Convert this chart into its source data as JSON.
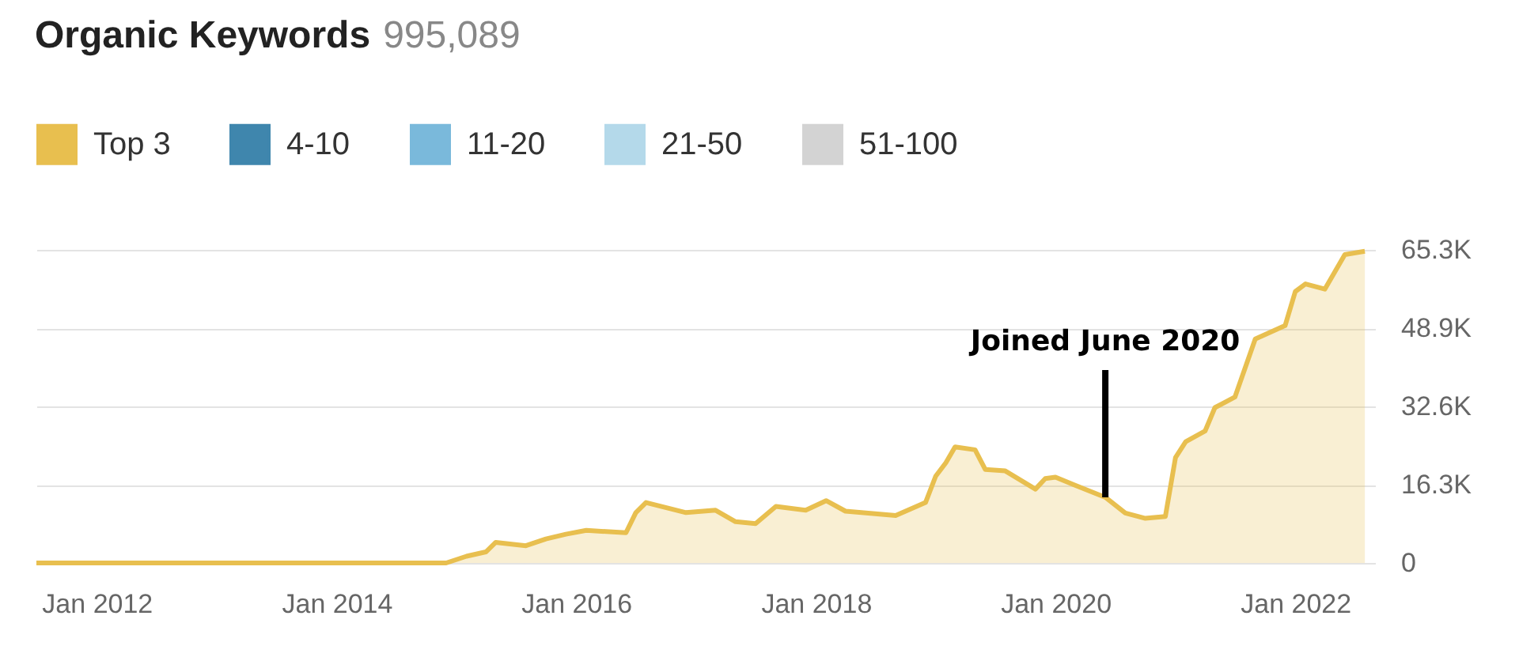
{
  "chart_data": {
    "type": "area",
    "title": "Organic Keywords",
    "subtitle": "995,089",
    "x": [
      "2011-07",
      "2014-12",
      "2015-02",
      "2015-04",
      "2015-05",
      "2015-08",
      "2015-10",
      "2015-12",
      "2016-02",
      "2016-06",
      "2016-07",
      "2016-08",
      "2016-12",
      "2017-03",
      "2017-05",
      "2017-07",
      "2017-09",
      "2017-12",
      "2018-02",
      "2018-04",
      "2018-09",
      "2018-12",
      "2019-01",
      "2019-02",
      "2019-03",
      "2019-05",
      "2019-06",
      "2019-08",
      "2019-11",
      "2019-12",
      "2020-01",
      "2020-03",
      "2020-06",
      "2020-08",
      "2020-10",
      "2020-12",
      "2021-01",
      "2021-02",
      "2021-04",
      "2021-05",
      "2021-07",
      "2021-09",
      "2021-12",
      "2022-01",
      "2022-02",
      "2022-04",
      "2022-06",
      "2022-08"
    ],
    "series": [
      {
        "name": "Top 3",
        "color": "#e8bf4f",
        "values": [
          0,
          0,
          1400,
          2300,
          4300,
          3600,
          5000,
          6000,
          6800,
          6300,
          10500,
          12600,
          10500,
          11000,
          8600,
          8200,
          11800,
          11000,
          13000,
          10800,
          9900,
          12600,
          18100,
          20900,
          24200,
          23600,
          19500,
          19200,
          15400,
          17600,
          17900,
          16200,
          13700,
          10400,
          9300,
          9700,
          22000,
          25300,
          27500,
          32400,
          34600,
          46700,
          49500,
          56600,
          58200,
          57100,
          64300,
          65000
        ]
      },
      {
        "name": "4-10",
        "color": "#3f86ad",
        "values": [
          null,
          null,
          null,
          null,
          null,
          null,
          null,
          null,
          null,
          null,
          null,
          null,
          null,
          null,
          null,
          null,
          null,
          null,
          null,
          null,
          null,
          null,
          null,
          null,
          null,
          null,
          null,
          null,
          null,
          null,
          null,
          null,
          null,
          null,
          null,
          null,
          null,
          null,
          null,
          null,
          null,
          null,
          null,
          null,
          null,
          null,
          null,
          null
        ]
      },
      {
        "name": "11-20",
        "color": "#7ab9db",
        "values": [
          null,
          null,
          null,
          null,
          null,
          null,
          null,
          null,
          null,
          null,
          null,
          null,
          null,
          null,
          null,
          null,
          null,
          null,
          null,
          null,
          null,
          null,
          null,
          null,
          null,
          null,
          null,
          null,
          null,
          null,
          null,
          null,
          null,
          null,
          null,
          null,
          null,
          null,
          null,
          null,
          null,
          null,
          null,
          null,
          null,
          null,
          null,
          null
        ]
      },
      {
        "name": "21-50",
        "color": "#b4d9ea",
        "values": [
          null,
          null,
          null,
          null,
          null,
          null,
          null,
          null,
          null,
          null,
          null,
          null,
          null,
          null,
          null,
          null,
          null,
          null,
          null,
          null,
          null,
          null,
          null,
          null,
          null,
          null,
          null,
          null,
          null,
          null,
          null,
          null,
          null,
          null,
          null,
          null,
          null,
          null,
          null,
          null,
          null,
          null,
          null,
          null,
          null,
          null,
          null,
          null
        ]
      },
      {
        "name": "51-100",
        "color": "#d3d3d3",
        "values": [
          null,
          null,
          null,
          null,
          null,
          null,
          null,
          null,
          null,
          null,
          null,
          null,
          null,
          null,
          null,
          null,
          null,
          null,
          null,
          null,
          null,
          null,
          null,
          null,
          null,
          null,
          null,
          null,
          null,
          null,
          null,
          null,
          null,
          null,
          null,
          null,
          null,
          null,
          null,
          null,
          null,
          null,
          null,
          null,
          null,
          null,
          null,
          null
        ]
      }
    ],
    "xlim": [
      "2011-07",
      "2022-09"
    ],
    "xticks": [
      {
        "value": "2012-01",
        "label": "Jan 2012"
      },
      {
        "value": "2014-01",
        "label": "Jan 2014"
      },
      {
        "value": "2016-01",
        "label": "Jan 2016"
      },
      {
        "value": "2018-01",
        "label": "Jan 2018"
      },
      {
        "value": "2020-01",
        "label": "Jan 2020"
      },
      {
        "value": "2022-01",
        "label": "Jan 2022"
      }
    ],
    "ylim": [
      0,
      65300
    ],
    "yticks": [
      0,
      {
        "value": 16300,
        "label": "16.3K"
      },
      {
        "value": 32600,
        "label": "32.6K"
      },
      {
        "value": 48900,
        "label": "48.9K"
      },
      {
        "value": 65300,
        "label": "65.3K"
      }
    ],
    "annotations": [
      {
        "text": "Joined June 2020",
        "x": "2020-06",
        "y": 13700
      }
    ],
    "grid": "y",
    "legend": "top left"
  }
}
